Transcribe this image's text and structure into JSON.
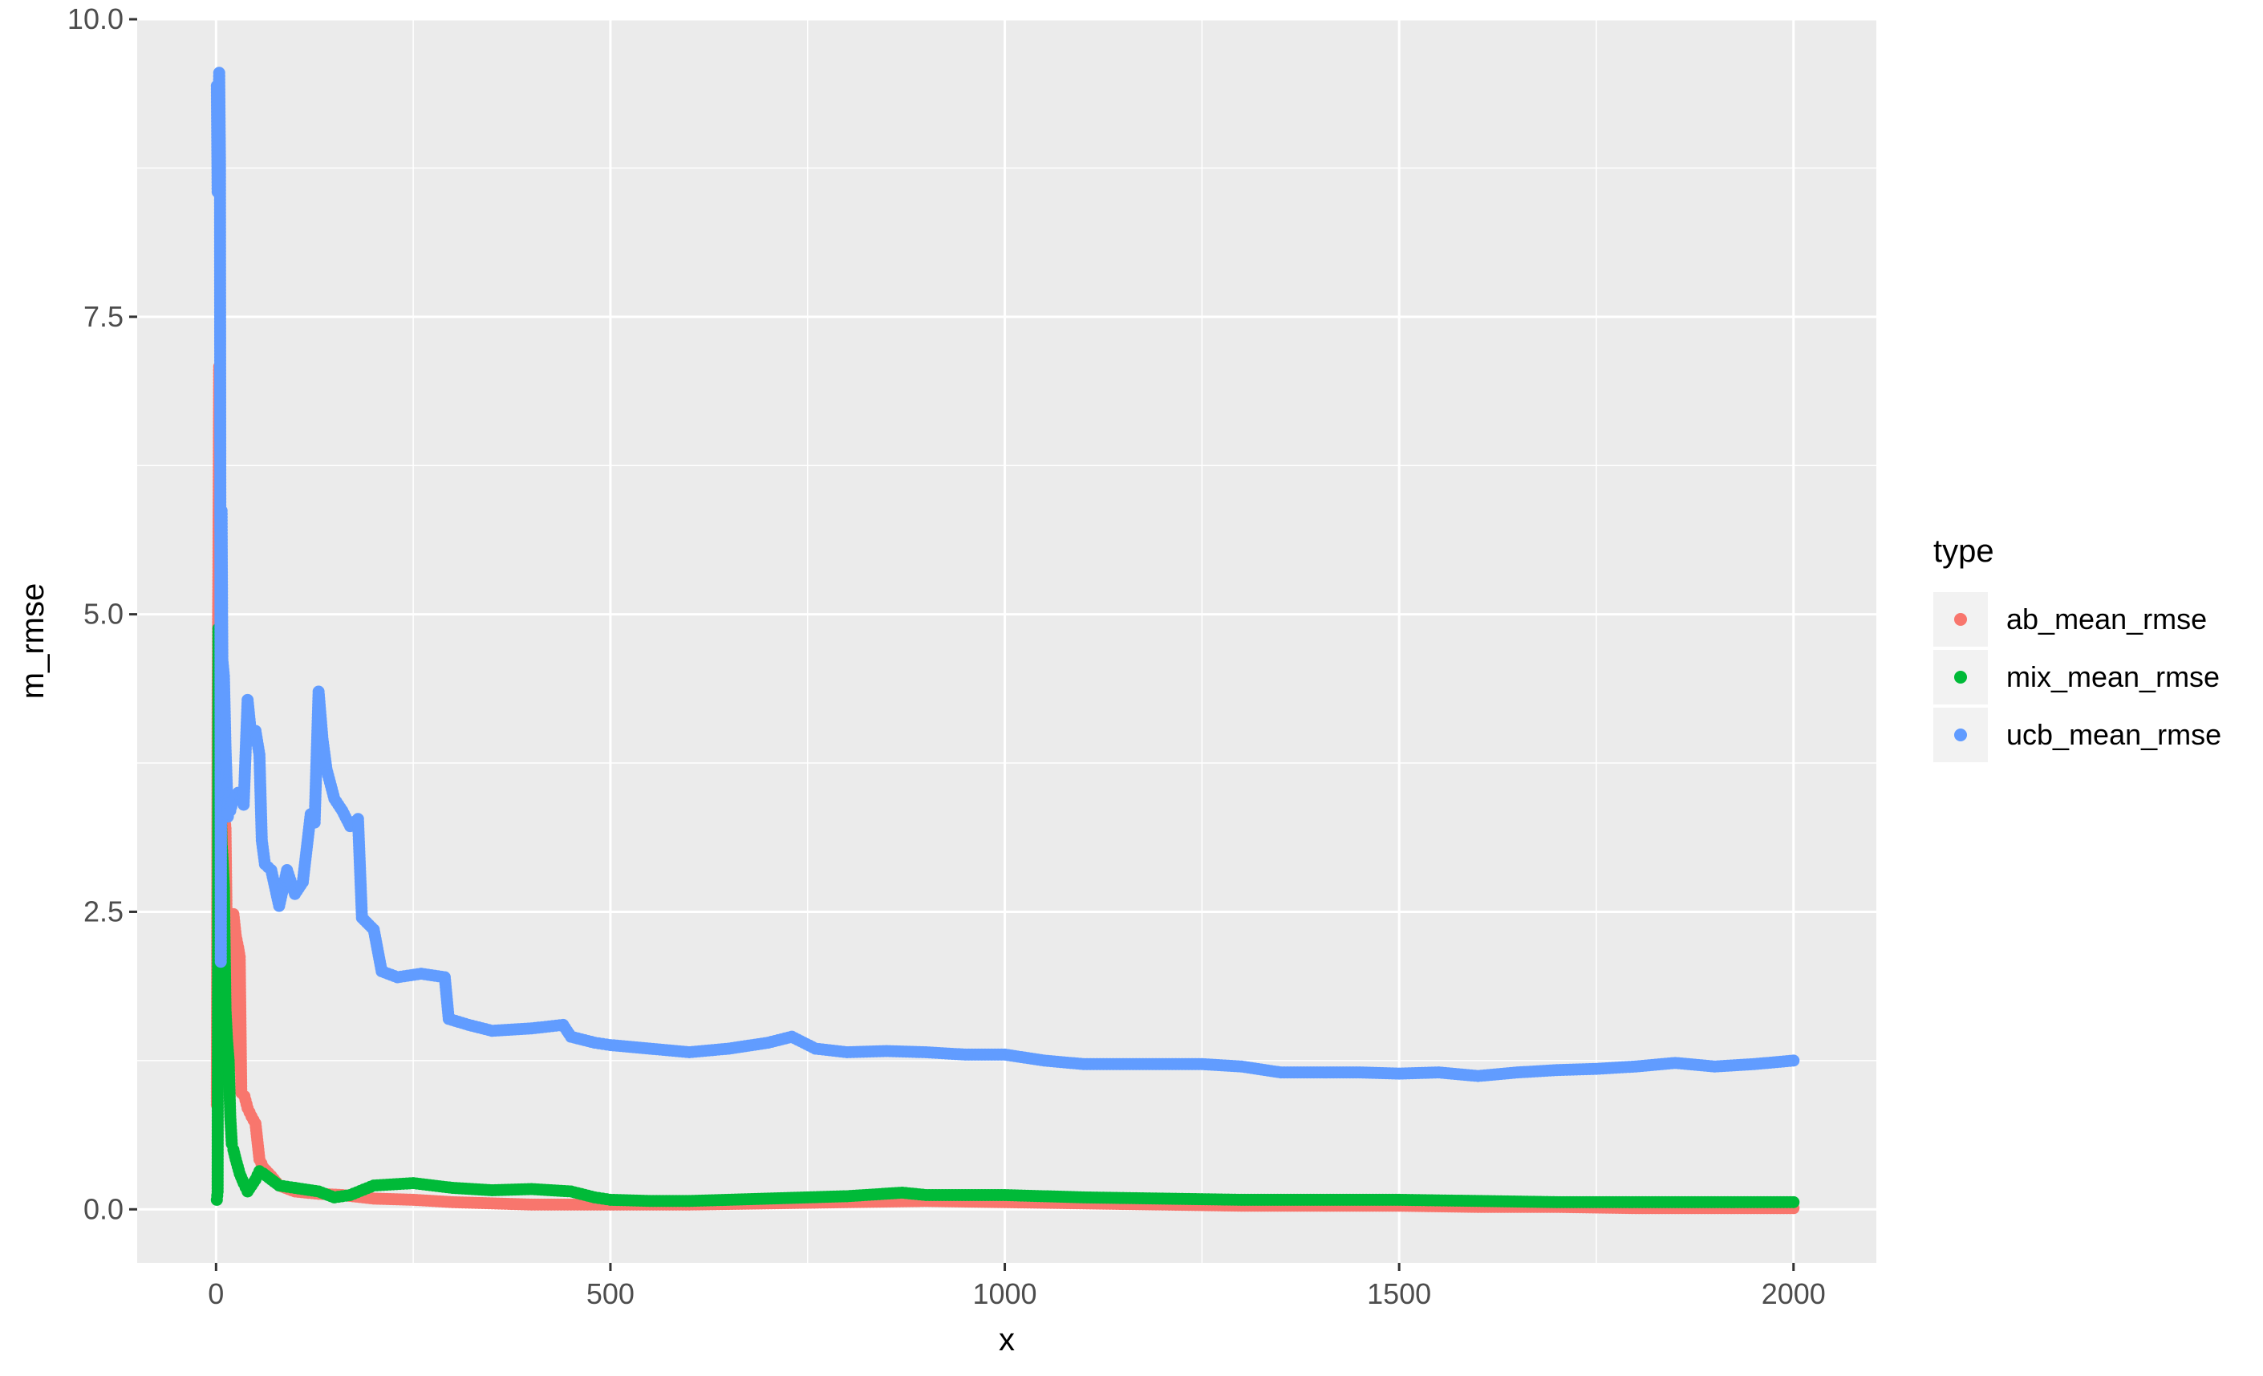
{
  "chart_data": {
    "type": "scatter",
    "xlabel": "x",
    "ylabel": "m_rmse",
    "xlim": [
      -100,
      2105
    ],
    "ylim": [
      -0.45,
      10.0
    ],
    "xticks": [
      0,
      500,
      1000,
      1500,
      2000
    ],
    "xtick_labels": [
      "0",
      "500",
      "1000",
      "1500",
      "2000"
    ],
    "yticks": [
      0.0,
      2.5,
      5.0,
      7.5,
      10.0
    ],
    "ytick_labels": [
      "0.0",
      "2.5",
      "5.0",
      "7.5",
      "10.0"
    ],
    "grid": true,
    "legend": {
      "title": "type",
      "position": "right"
    },
    "series": [
      {
        "name": "ab_mean_rmse",
        "color": "#F8766D",
        "points": [
          [
            1,
            0.88
          ],
          [
            2,
            4.28
          ],
          [
            3,
            5.42
          ],
          [
            4,
            7.08
          ],
          [
            5,
            4.55
          ],
          [
            6,
            4.02
          ],
          [
            7,
            3.7
          ],
          [
            8,
            3.55
          ],
          [
            10,
            3.35
          ],
          [
            12,
            3.2
          ],
          [
            14,
            2.1
          ],
          [
            16,
            1.9
          ],
          [
            18,
            1.45
          ],
          [
            20,
            1.2
          ],
          [
            22,
            2.48
          ],
          [
            25,
            2.3
          ],
          [
            28,
            2.2
          ],
          [
            30,
            2.12
          ],
          [
            32,
            0.98
          ],
          [
            36,
            0.95
          ],
          [
            40,
            0.85
          ],
          [
            45,
            0.78
          ],
          [
            50,
            0.72
          ],
          [
            55,
            0.42
          ],
          [
            60,
            0.35
          ],
          [
            70,
            0.28
          ],
          [
            80,
            0.2
          ],
          [
            100,
            0.15
          ],
          [
            130,
            0.13
          ],
          [
            160,
            0.12
          ],
          [
            200,
            0.09
          ],
          [
            250,
            0.08
          ],
          [
            300,
            0.06
          ],
          [
            350,
            0.05
          ],
          [
            400,
            0.04
          ],
          [
            450,
            0.04
          ],
          [
            500,
            0.04
          ],
          [
            600,
            0.04
          ],
          [
            700,
            0.05
          ],
          [
            800,
            0.06
          ],
          [
            900,
            0.07
          ],
          [
            1000,
            0.06
          ],
          [
            1100,
            0.05
          ],
          [
            1200,
            0.04
          ],
          [
            1300,
            0.03
          ],
          [
            1400,
            0.03
          ],
          [
            1500,
            0.03
          ],
          [
            1600,
            0.02
          ],
          [
            1700,
            0.02
          ],
          [
            1800,
            0.01
          ],
          [
            1900,
            0.01
          ],
          [
            2000,
            0.01
          ]
        ]
      },
      {
        "name": "mix_mean_rmse",
        "color": "#00BA38",
        "points": [
          [
            1,
            0.08
          ],
          [
            2,
            0.15
          ],
          [
            3,
            4.88
          ],
          [
            4,
            4.0
          ],
          [
            5,
            3.58
          ],
          [
            6,
            3.42
          ],
          [
            7,
            3.08
          ],
          [
            8,
            2.98
          ],
          [
            10,
            2.7
          ],
          [
            12,
            1.68
          ],
          [
            14,
            1.42
          ],
          [
            16,
            1.25
          ],
          [
            18,
            0.78
          ],
          [
            20,
            0.55
          ],
          [
            22,
            0.5
          ],
          [
            25,
            0.42
          ],
          [
            30,
            0.3
          ],
          [
            35,
            0.22
          ],
          [
            40,
            0.15
          ],
          [
            45,
            0.2
          ],
          [
            50,
            0.25
          ],
          [
            55,
            0.32
          ],
          [
            60,
            0.3
          ],
          [
            70,
            0.25
          ],
          [
            80,
            0.2
          ],
          [
            100,
            0.18
          ],
          [
            130,
            0.15
          ],
          [
            150,
            0.1
          ],
          [
            170,
            0.12
          ],
          [
            200,
            0.2
          ],
          [
            250,
            0.22
          ],
          [
            300,
            0.18
          ],
          [
            350,
            0.16
          ],
          [
            400,
            0.17
          ],
          [
            450,
            0.15
          ],
          [
            480,
            0.1
          ],
          [
            500,
            0.08
          ],
          [
            550,
            0.07
          ],
          [
            600,
            0.07
          ],
          [
            700,
            0.09
          ],
          [
            800,
            0.11
          ],
          [
            870,
            0.14
          ],
          [
            900,
            0.12
          ],
          [
            1000,
            0.12
          ],
          [
            1100,
            0.1
          ],
          [
            1200,
            0.09
          ],
          [
            1300,
            0.08
          ],
          [
            1400,
            0.08
          ],
          [
            1500,
            0.08
          ],
          [
            1600,
            0.07
          ],
          [
            1700,
            0.06
          ],
          [
            1800,
            0.06
          ],
          [
            1900,
            0.06
          ],
          [
            2000,
            0.06
          ]
        ]
      },
      {
        "name": "ucb_mean_rmse",
        "color": "#619CFF",
        "points": [
          [
            1,
            9.44
          ],
          [
            2,
            8.55
          ],
          [
            3,
            9.12
          ],
          [
            4,
            9.55
          ],
          [
            5,
            8.78
          ],
          [
            6,
            2.08
          ],
          [
            7,
            5.87
          ],
          [
            8,
            4.62
          ],
          [
            10,
            4.48
          ],
          [
            12,
            3.88
          ],
          [
            15,
            3.3
          ],
          [
            18,
            3.35
          ],
          [
            22,
            3.45
          ],
          [
            28,
            3.5
          ],
          [
            35,
            3.4
          ],
          [
            40,
            4.28
          ],
          [
            45,
            3.95
          ],
          [
            50,
            4.02
          ],
          [
            55,
            3.82
          ],
          [
            58,
            3.1
          ],
          [
            62,
            2.9
          ],
          [
            70,
            2.85
          ],
          [
            80,
            2.55
          ],
          [
            90,
            2.85
          ],
          [
            100,
            2.65
          ],
          [
            110,
            2.75
          ],
          [
            120,
            3.32
          ],
          [
            125,
            3.25
          ],
          [
            130,
            4.35
          ],
          [
            135,
            3.95
          ],
          [
            140,
            3.7
          ],
          [
            150,
            3.45
          ],
          [
            160,
            3.35
          ],
          [
            170,
            3.22
          ],
          [
            180,
            3.28
          ],
          [
            185,
            2.45
          ],
          [
            200,
            2.35
          ],
          [
            210,
            2.0
          ],
          [
            230,
            1.95
          ],
          [
            260,
            1.98
          ],
          [
            290,
            1.95
          ],
          [
            295,
            1.6
          ],
          [
            320,
            1.55
          ],
          [
            350,
            1.5
          ],
          [
            400,
            1.52
          ],
          [
            440,
            1.55
          ],
          [
            450,
            1.45
          ],
          [
            480,
            1.4
          ],
          [
            500,
            1.38
          ],
          [
            550,
            1.35
          ],
          [
            600,
            1.32
          ],
          [
            650,
            1.35
          ],
          [
            700,
            1.4
          ],
          [
            730,
            1.45
          ],
          [
            760,
            1.35
          ],
          [
            800,
            1.32
          ],
          [
            850,
            1.33
          ],
          [
            900,
            1.32
          ],
          [
            950,
            1.3
          ],
          [
            1000,
            1.3
          ],
          [
            1050,
            1.25
          ],
          [
            1100,
            1.22
          ],
          [
            1150,
            1.22
          ],
          [
            1200,
            1.22
          ],
          [
            1250,
            1.22
          ],
          [
            1300,
            1.2
          ],
          [
            1350,
            1.15
          ],
          [
            1400,
            1.15
          ],
          [
            1450,
            1.15
          ],
          [
            1500,
            1.14
          ],
          [
            1550,
            1.15
          ],
          [
            1600,
            1.12
          ],
          [
            1650,
            1.15
          ],
          [
            1700,
            1.17
          ],
          [
            1750,
            1.18
          ],
          [
            1800,
            1.2
          ],
          [
            1850,
            1.23
          ],
          [
            1900,
            1.2
          ],
          [
            1950,
            1.22
          ],
          [
            2000,
            1.25
          ]
        ]
      }
    ]
  }
}
